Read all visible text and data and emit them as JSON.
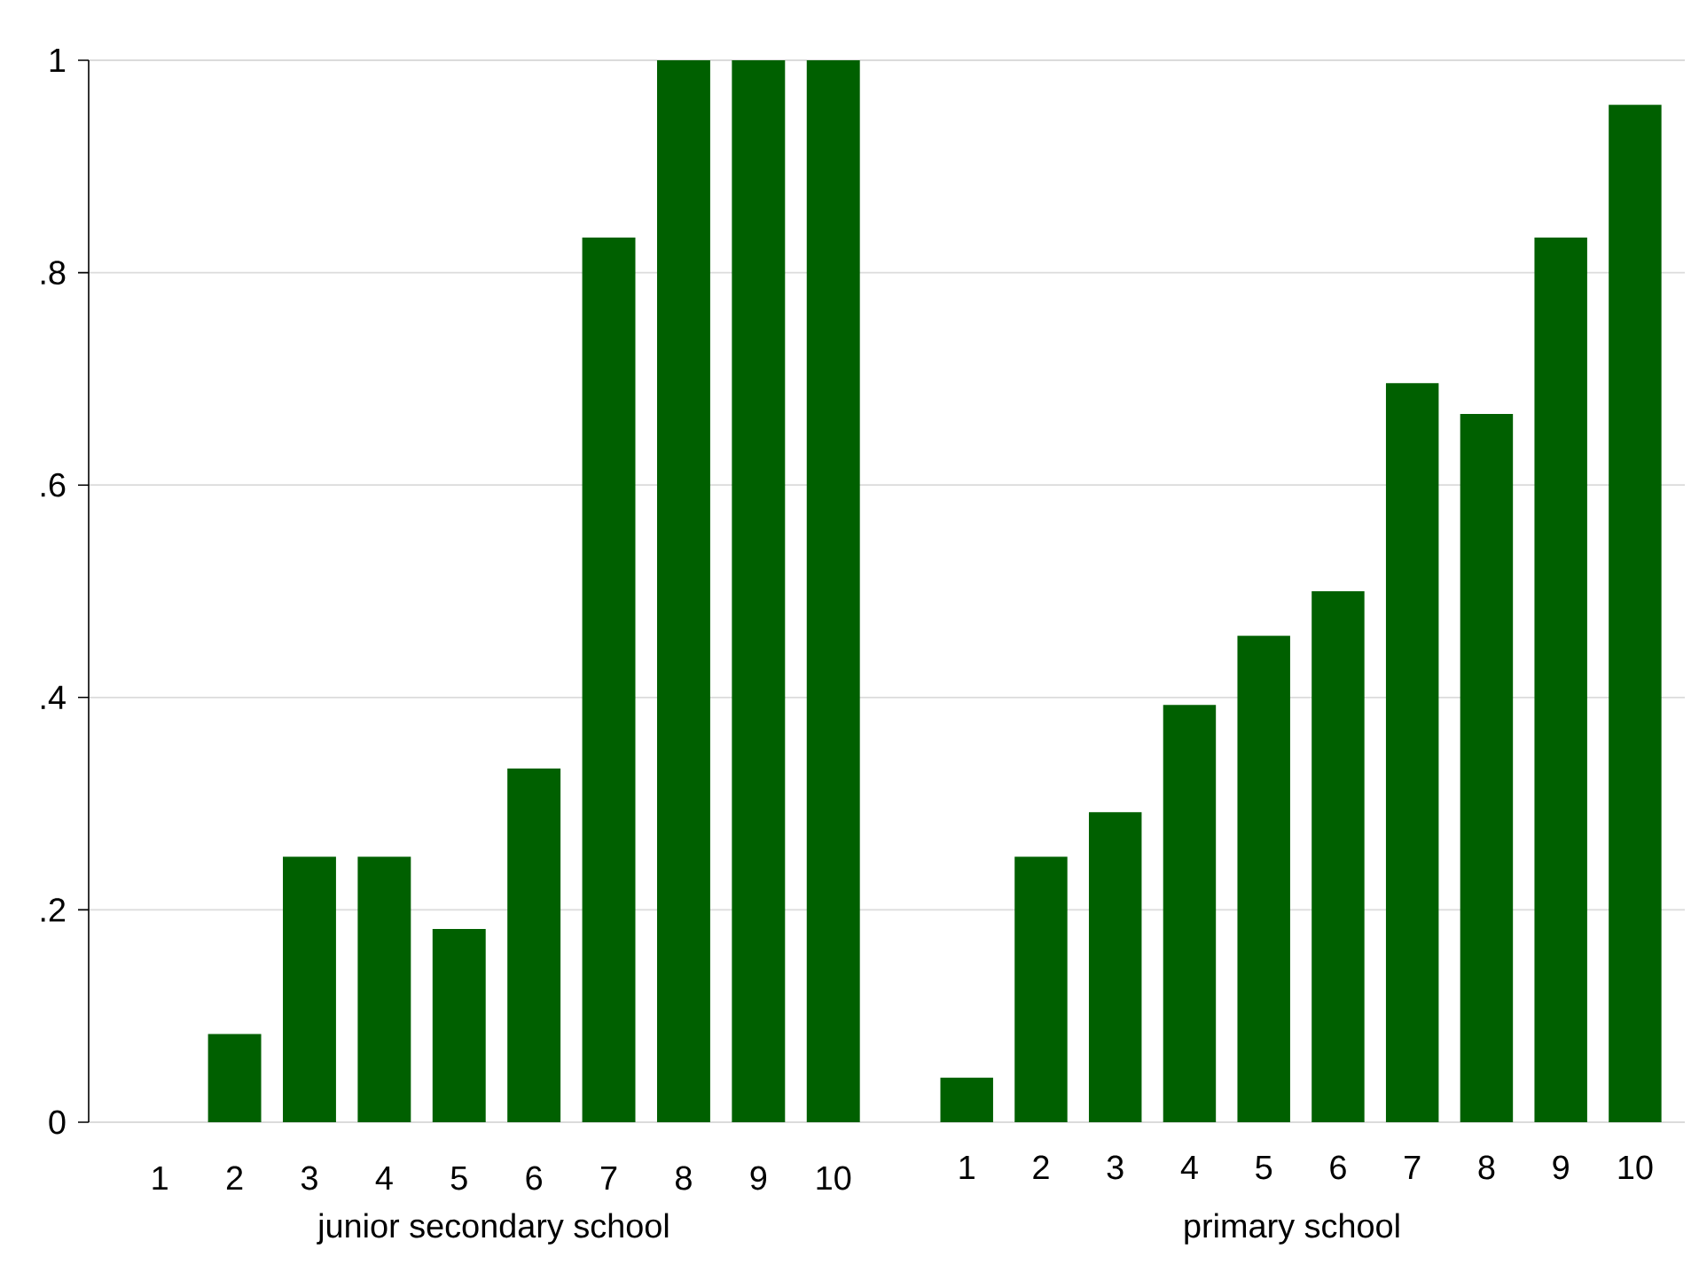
{
  "chart_data": [
    {
      "type": "bar",
      "categories": [
        "1",
        "2",
        "3",
        "4",
        "5",
        "6",
        "7",
        "8",
        "9",
        "10"
      ],
      "values": [
        0,
        0.083,
        0.25,
        0.25,
        0.182,
        0.333,
        0.833,
        1,
        1,
        1
      ],
      "color": "#006000",
      "xlabel": "junior secondary school",
      "ylim": [
        0,
        1
      ],
      "yticks": [
        0,
        {
          "value": 0.2,
          "label": ".2"
        },
        {
          "value": 0.4,
          "label": ".4"
        },
        {
          "value": 0.6,
          "label": ".6"
        },
        {
          "value": 0.8,
          "label": ".8"
        },
        1
      ],
      "grid": "y"
    },
    {
      "type": "bar",
      "categories": [
        "1",
        "2",
        "3",
        "4",
        "5",
        "6",
        "7",
        "8",
        "9",
        "10"
      ],
      "values": [
        0.042,
        0.25,
        0.292,
        0.393,
        0.458,
        0.5,
        0.696,
        0.667,
        0.833,
        0.958
      ],
      "color": "#006000",
      "xlabel": "primary school",
      "ylim": [
        0,
        1
      ],
      "yticks": [
        0,
        0.2,
        0.4,
        0.6,
        0.8,
        1
      ],
      "grid": "y",
      "tick_labels": "x"
    }
  ]
}
